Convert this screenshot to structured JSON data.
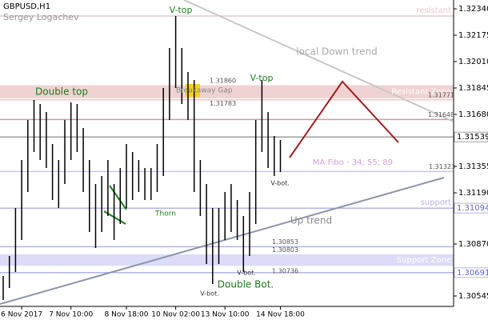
{
  "chart_data": {
    "type": "ohlc",
    "title": "GBPUSD,H1",
    "subtitle": "Sergey Logachev",
    "color": "#000000",
    "ylim": [
      1.3048,
      1.32395
    ],
    "yticks": [
      {
        "value": 1.3234,
        "label": "1.32340"
      },
      1.32175,
      {
        "value": 1.3201,
        "label": "1.32010"
      },
      1.31845,
      {
        "value": 1.3168,
        "label": "1.31680"
      },
      1.31355,
      {
        "value": 1.3119,
        "label": "1.31190"
      },
      {
        "value": 1.3087,
        "label": "1.30870"
      },
      1.30545
    ],
    "categories": [
      null,
      null,
      null,
      "6 Nov 2017",
      null,
      null,
      null,
      null,
      null,
      null,
      null,
      "7 Nov 10:00",
      null,
      null,
      null,
      null,
      null,
      null,
      null,
      null,
      "8 Nov 18:00",
      null,
      null,
      null,
      null,
      null,
      null,
      null,
      "10 Nov 02:00",
      null,
      null,
      null,
      null,
      null,
      null,
      null,
      "13 Nov 10:00",
      null,
      null,
      null,
      null,
      null,
      null,
      null,
      null,
      "14 Nov 18:00"
    ],
    "high": [
      1.3067,
      1.30795,
      1.31095,
      1.31395,
      1.31645,
      1.3177,
      1.31745,
      1.31695,
      1.31495,
      1.31395,
      1.31645,
      1.31755,
      1.31745,
      1.31595,
      1.31395,
      1.31245,
      1.31295,
      1.31395,
      1.31245,
      1.31345,
      1.31495,
      1.31445,
      1.31395,
      1.31345,
      1.31345,
      1.31495,
      1.31845,
      1.32095,
      1.32295,
      1.32095,
      1.31945,
      1.31895,
      1.31395,
      1.31245,
      1.31095,
      1.31095,
      1.31195,
      1.31245,
      1.31145,
      1.31045,
      1.31195,
      1.31645,
      1.31895,
      1.31695,
      1.31545,
      1.3152
    ],
    "low": [
      1.3052,
      1.30595,
      1.30695,
      1.30895,
      1.31195,
      1.31445,
      1.31395,
      1.31345,
      1.31145,
      1.31095,
      1.31245,
      1.31395,
      1.31445,
      1.31195,
      1.30945,
      1.30845,
      1.30945,
      1.31045,
      1.30895,
      1.30995,
      1.31095,
      1.31145,
      1.31195,
      1.31145,
      1.31145,
      1.31195,
      1.31295,
      1.31645,
      1.31845,
      1.31745,
      1.31645,
      1.31195,
      1.31045,
      1.30745,
      1.3062,
      1.30745,
      1.30895,
      1.30945,
      1.30895,
      1.30695,
      1.30795,
      1.30995,
      1.31445,
      1.31345,
      1.31295,
      1.3132
    ],
    "levels": [
      {
        "value": 1.32295,
        "text": "resistant",
        "color": "#e6c8c8"
      },
      {
        "value": 1.31771,
        "label": "1.31771",
        "color": "#f0c8c8"
      },
      {
        "value": 1.31648,
        "label": "1.31648",
        "color": "#c8a0a0"
      },
      {
        "value": 1.31539,
        "label": "1.31539",
        "color": "#a0a0a0",
        "axis_box": true
      },
      {
        "value": 1.31323,
        "label": "1.31323",
        "color": "#c8c8f0"
      },
      {
        "value": 1.31094,
        "label": "1.31094",
        "text": "support",
        "color": "#b4b4e6",
        "axis_box": true
      },
      {
        "value": 1.30853,
        "label": "1.30853",
        "color": "#b4b4e6"
      },
      {
        "value": 1.30691,
        "label": "1.30691",
        "color": "#b4b4e6",
        "axis_box": true
      }
    ],
    "zones": [
      {
        "text": "Resistant Zone",
        "color": "#f0d2d2",
        "levels": [
          {
            "value": 1.3186,
            "label": "1.31860"
          },
          {
            "value": 1.31783,
            "label": "1.31783"
          }
        ]
      },
      {
        "text": "Support Zone",
        "color": "#dcdcf8",
        "levels": [
          {
            "value": 1.30803,
            "label": "1.30803"
          },
          {
            "value": 1.30736,
            "label": "1.30736"
          }
        ]
      }
    ],
    "annotations": [
      "V-top",
      "Double top",
      "V-top",
      "Breakaway Gap",
      "local Down trend",
      "MA Fibo - 34; 55; 89",
      "V-bot.",
      "Up trend",
      "Thorn",
      "Double Bot.",
      "V-bot.",
      "V-bot."
    ]
  }
}
